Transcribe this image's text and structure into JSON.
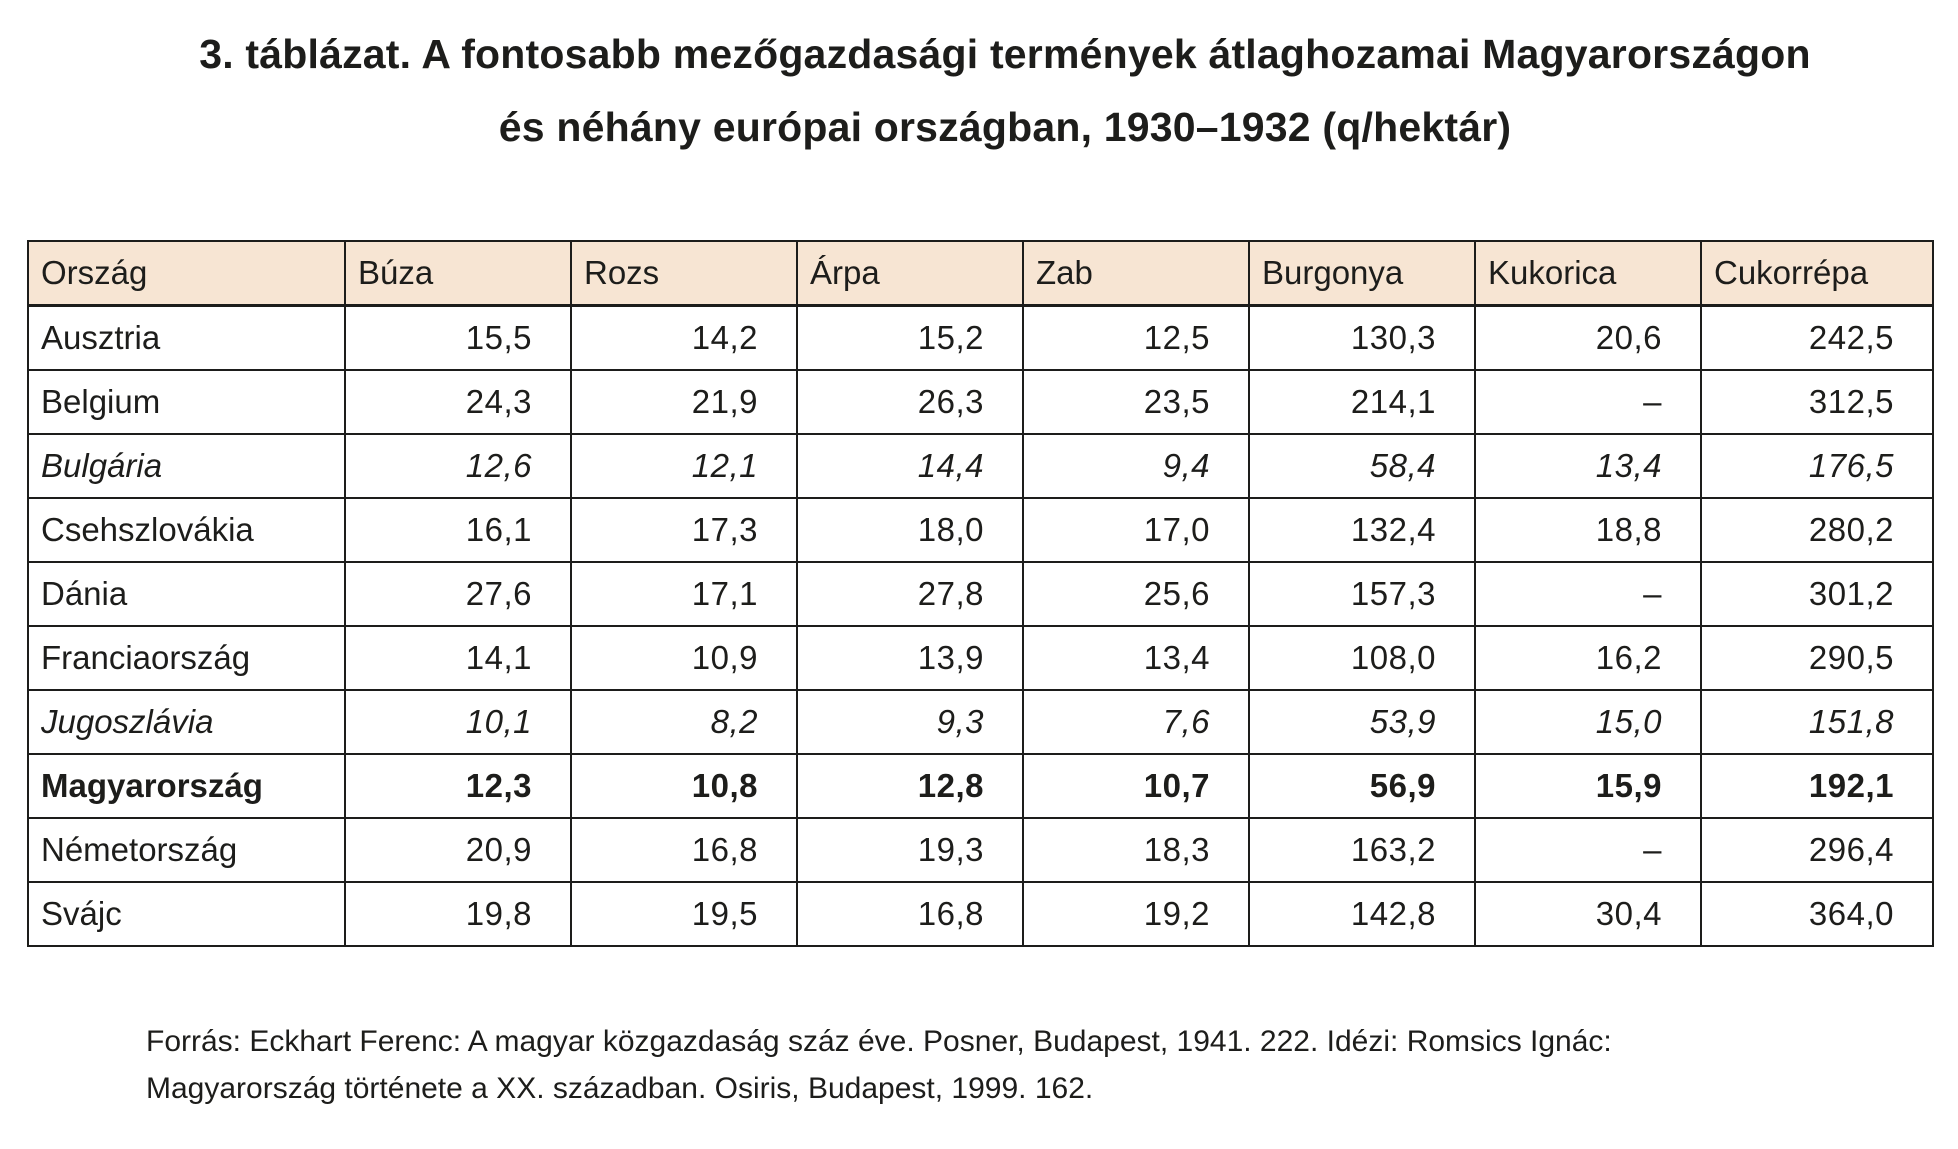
{
  "title": {
    "line1": "3. táblázat. A fontosabb mezőgazdasági termények átlaghozamai Magyarországon",
    "line2": "és néhány európai országban, 1930–1932 (q/hektár)"
  },
  "table": {
    "headers": [
      "Ország",
      "Búza",
      "Rozs",
      "Árpa",
      "Zab",
      "Burgonya",
      "Kukorica",
      "Cukorrépa"
    ],
    "rows": [
      {
        "style": "normal",
        "cells": [
          "Ausztria",
          "15,5",
          "14,2",
          "15,2",
          "12,5",
          "130,3",
          "20,6",
          "242,5"
        ]
      },
      {
        "style": "normal",
        "cells": [
          "Belgium",
          "24,3",
          "21,9",
          "26,3",
          "23,5",
          "214,1",
          "–",
          "312,5"
        ]
      },
      {
        "style": "italic",
        "cells": [
          "Bulgária",
          "12,6",
          "12,1",
          "14,4",
          "9,4",
          "58,4",
          "13,4",
          "176,5"
        ]
      },
      {
        "style": "normal",
        "cells": [
          "Csehszlovákia",
          "16,1",
          "17,3",
          "18,0",
          "17,0",
          "132,4",
          "18,8",
          "280,2"
        ]
      },
      {
        "style": "normal",
        "cells": [
          "Dánia",
          "27,6",
          "17,1",
          "27,8",
          "25,6",
          "157,3",
          "–",
          "301,2"
        ]
      },
      {
        "style": "normal",
        "cells": [
          "Franciaország",
          "14,1",
          "10,9",
          "13,9",
          "13,4",
          "108,0",
          "16,2",
          "290,5"
        ]
      },
      {
        "style": "italic",
        "cells": [
          "Jugoszlávia",
          "10,1",
          "8,2",
          "9,3",
          "7,6",
          "53,9",
          "15,0",
          "151,8"
        ]
      },
      {
        "style": "bold",
        "cells": [
          "Magyarország",
          "12,3",
          "10,8",
          "12,8",
          "10,7",
          "56,9",
          "15,9",
          "192,1"
        ]
      },
      {
        "style": "normal",
        "cells": [
          "Németország",
          "20,9",
          "16,8",
          "19,3",
          "18,3",
          "163,2",
          "–",
          "296,4"
        ]
      },
      {
        "style": "normal",
        "cells": [
          "Svájc",
          "19,8",
          "19,5",
          "16,8",
          "19,2",
          "142,8",
          "30,4",
          "364,0"
        ]
      }
    ]
  },
  "source": {
    "line1": "Forrás: Eckhart Ferenc: A magyar közgazdaság száz éve. Posner, Budapest, 1941. 222. Idézi: Romsics Ignác:",
    "line2": "Magyarország története a XX. században. Osiris, Budapest, 1999. 162."
  },
  "colors": {
    "header_background": "#f7e5d3",
    "text": "#1d1d1b",
    "border": "#1d1d1b"
  }
}
